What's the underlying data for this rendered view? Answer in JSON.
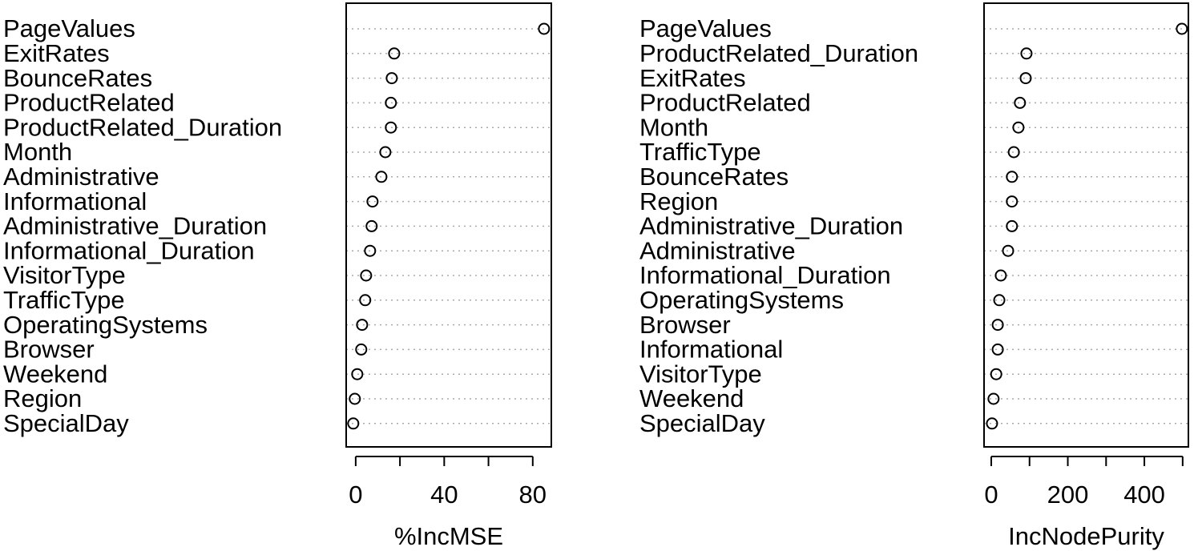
{
  "chart_data": [
    {
      "type": "dot",
      "categories": [
        "PageValues",
        "ExitRates",
        "BounceRates",
        "ProductRelated",
        "ProductRelated_Duration",
        "Month",
        "Administrative",
        "Informational",
        "Administrative_Duration",
        "Informational_Duration",
        "VisitorType",
        "TrafficType",
        "OperatingSystems",
        "Browser",
        "Weekend",
        "Region",
        "SpecialDay"
      ],
      "values": [
        85.1,
        17.4,
        16.3,
        15.9,
        15.9,
        13.4,
        11.6,
        7.6,
        7.2,
        6.5,
        4.7,
        4.3,
        2.9,
        2.5,
        0.7,
        -0.4,
        -1.1
      ],
      "xlim": [
        -4.3,
        88.4
      ],
      "xticks": [
        0,
        40,
        80
      ],
      "minor_xticks": [
        20,
        60
      ],
      "xlabel": "%IncMSE",
      "color": "#000000",
      "grid": true
    },
    {
      "type": "dot",
      "categories": [
        "PageValues",
        "ProductRelated_Duration",
        "ExitRates",
        "ProductRelated",
        "Month",
        "TrafficType",
        "BounceRates",
        "Region",
        "Administrative_Duration",
        "Administrative",
        "Informational_Duration",
        "OperatingSystems",
        "Browser",
        "Informational",
        "VisitorType",
        "Weekend",
        "SpecialDay"
      ],
      "values": [
        498,
        92,
        90,
        75,
        71,
        59,
        54,
        54,
        54,
        44,
        25,
        21,
        17,
        17,
        13,
        6,
        2
      ],
      "xlim": [
        -18.8,
        515
      ],
      "xticks": [
        0,
        200,
        400
      ],
      "minor_xticks": [
        100,
        300,
        500
      ],
      "xlabel": "IncNodePurity",
      "color": "#000000",
      "grid": true
    }
  ]
}
